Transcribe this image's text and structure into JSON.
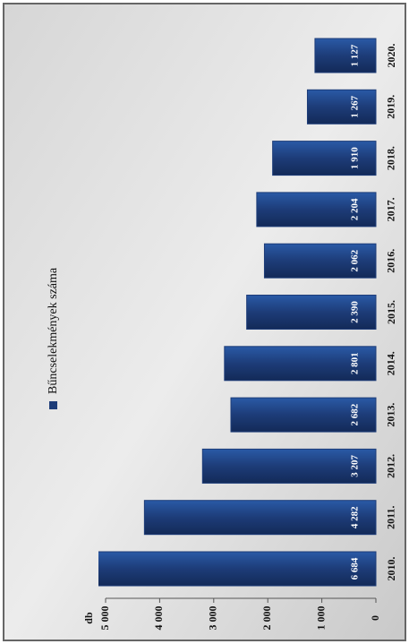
{
  "chart_data": {
    "type": "bar",
    "orientation": "rotated",
    "y_label": "db",
    "categories": [
      "2010.",
      "2011.",
      "2012.",
      "2013.",
      "2014.",
      "2015.",
      "2016.",
      "2017.",
      "2018.",
      "2019.",
      "2020."
    ],
    "series": [
      {
        "name": "Bűncselekmények száma",
        "color": "#1d3c78",
        "values": [
          6684,
          4282,
          3207,
          2682,
          2801,
          2390,
          2062,
          2204,
          1910,
          1267,
          1127
        ],
        "value_labels": [
          "6 684",
          "4 282",
          "3 207",
          "2 682",
          "2 801",
          "2 390",
          "2 062",
          "2 204",
          "1 910",
          "1 267",
          "1 127"
        ]
      }
    ],
    "ylim": [
      0,
      5000
    ],
    "yticks": [
      0,
      {
        "value": 1000,
        "label": "1 000"
      },
      {
        "value": 2000,
        "label": "2 000"
      },
      {
        "value": 3000,
        "label": "3 000"
      },
      {
        "value": 4000,
        "label": "4 000"
      },
      {
        "value": 5000,
        "label": "5 000"
      }
    ],
    "legend": "left"
  }
}
